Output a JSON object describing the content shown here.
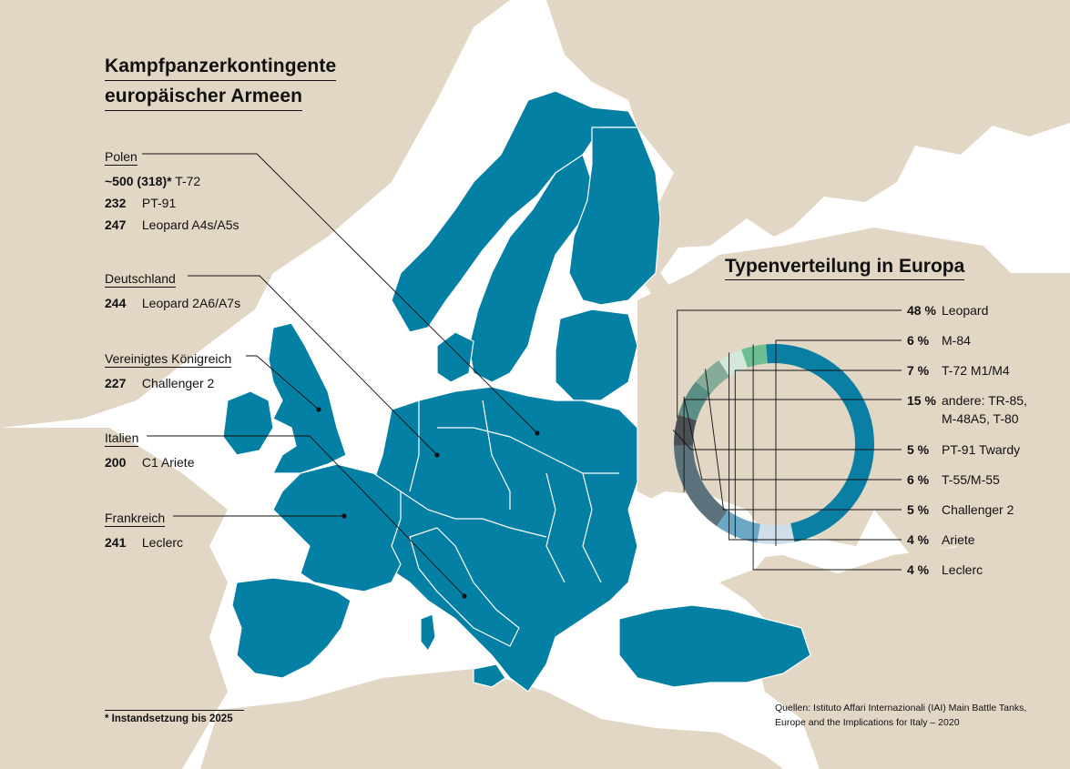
{
  "title": {
    "line1": "Kampfpanzerkontingente",
    "line2": "europäischer Armeen"
  },
  "countries": [
    {
      "name": "Polen",
      "tanks": [
        {
          "count": "~500 (318)*",
          "model": "T-72"
        },
        {
          "count": "232",
          "model": "PT-91"
        },
        {
          "count": "247",
          "model": "Leopard A4s/A5s"
        }
      ]
    },
    {
      "name": "Deutschland",
      "tanks": [
        {
          "count": "244",
          "model": "Leopard 2A6/A7s"
        }
      ]
    },
    {
      "name": "Vereinigtes Königreich",
      "tanks": [
        {
          "count": "227",
          "model": "Challenger 2"
        }
      ]
    },
    {
      "name": "Italien",
      "tanks": [
        {
          "count": "200",
          "model": "C1 Ariete"
        }
      ]
    },
    {
      "name": "Frankreich",
      "tanks": [
        {
          "count": "241",
          "model": "Leclerc"
        }
      ]
    }
  ],
  "footnote": "* Instandsetzung bis 2025",
  "source": "Quellen: Istituto Affari Internazionali (IAI) Main Battle Tanks, Europe and the Implications for Italy – 2020",
  "distribution": {
    "title": "Typenverteilung in Europa",
    "type": "pie",
    "items": [
      {
        "pct": "48 %",
        "value": 48,
        "label": "Leopard",
        "color": "#0a7fa3"
      },
      {
        "pct": "6 %",
        "value": 6,
        "label": "M-84",
        "color": "#cfdfe9"
      },
      {
        "pct": "7 %",
        "value": 7,
        "label": "T-72 M1/M4",
        "color": "#6aa8c6"
      },
      {
        "pct": "15 %",
        "value": 15,
        "label": "andere: TR-85,\nM-48A5, T-80",
        "color": "#5b717c"
      },
      {
        "pct": "5 %",
        "value": 5,
        "label": "PT-91 Twardy",
        "color": "#4a5054"
      },
      {
        "pct": "6 %",
        "value": 6,
        "label": "T-55/M-55",
        "color": "#5a8f85"
      },
      {
        "pct": "5 %",
        "value": 5,
        "label": "Challenger 2",
        "color": "#84ac98"
      },
      {
        "pct": "4 %",
        "value": 4,
        "label": "Ariete",
        "color": "#d3e8da"
      },
      {
        "pct": "4 %",
        "value": 4,
        "label": "Leclerc",
        "color": "#6cbd91"
      }
    ]
  },
  "colors": {
    "land": "#e2d6c5",
    "europe": "#0480a4",
    "border": "#ffffff",
    "sea": "#ffffff",
    "text": "#111111"
  }
}
